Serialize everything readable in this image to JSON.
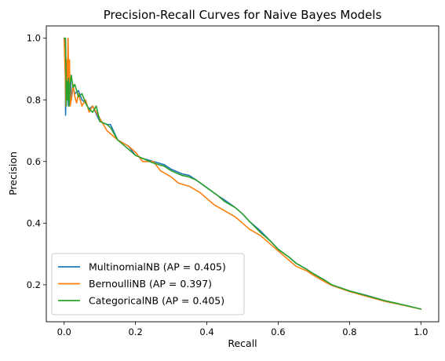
{
  "chart_data": {
    "type": "line",
    "title": "Precision-Recall Curves for Naive Bayes Models",
    "xlabel": "Recall",
    "ylabel": "Precision",
    "xlim": [
      -0.05,
      1.05
    ],
    "ylim": [
      0.08,
      1.04
    ],
    "xticks": [
      0.0,
      0.2,
      0.4,
      0.6,
      0.8,
      1.0
    ],
    "xtick_labels": [
      "0.0",
      "0.2",
      "0.4",
      "0.6",
      "0.8",
      "1.0"
    ],
    "yticks": [
      0.2,
      0.4,
      0.6,
      0.8,
      1.0
    ],
    "ytick_labels": [
      "0.2",
      "0.4",
      "0.6",
      "0.8",
      "1.0"
    ],
    "grid": false,
    "legend_position": "lower-left",
    "series": [
      {
        "name": "MultinomialNB (AP = 0.405)",
        "color": "#1f77b4",
        "points": [
          [
            0.0,
            1.0
          ],
          [
            0.003,
            1.0
          ],
          [
            0.004,
            0.75
          ],
          [
            0.006,
            0.86
          ],
          [
            0.008,
            0.8
          ],
          [
            0.01,
            0.83
          ],
          [
            0.012,
            0.78
          ],
          [
            0.015,
            0.82
          ],
          [
            0.018,
            0.87
          ],
          [
            0.02,
            0.8
          ],
          [
            0.025,
            0.84
          ],
          [
            0.03,
            0.82
          ],
          [
            0.04,
            0.83
          ],
          [
            0.05,
            0.8
          ],
          [
            0.06,
            0.79
          ],
          [
            0.07,
            0.77
          ],
          [
            0.08,
            0.78
          ],
          [
            0.1,
            0.73
          ],
          [
            0.12,
            0.72
          ],
          [
            0.13,
            0.72
          ],
          [
            0.15,
            0.67
          ],
          [
            0.18,
            0.65
          ],
          [
            0.2,
            0.62
          ],
          [
            0.22,
            0.61
          ],
          [
            0.25,
            0.6
          ],
          [
            0.28,
            0.59
          ],
          [
            0.3,
            0.575
          ],
          [
            0.33,
            0.56
          ],
          [
            0.35,
            0.555
          ],
          [
            0.37,
            0.54
          ],
          [
            0.4,
            0.515
          ],
          [
            0.43,
            0.49
          ],
          [
            0.45,
            0.475
          ],
          [
            0.48,
            0.45
          ],
          [
            0.5,
            0.43
          ],
          [
            0.52,
            0.405
          ],
          [
            0.55,
            0.375
          ],
          [
            0.58,
            0.34
          ],
          [
            0.6,
            0.315
          ],
          [
            0.63,
            0.29
          ],
          [
            0.65,
            0.27
          ],
          [
            0.68,
            0.25
          ],
          [
            0.7,
            0.235
          ],
          [
            0.73,
            0.215
          ],
          [
            0.75,
            0.2
          ],
          [
            0.8,
            0.18
          ],
          [
            0.85,
            0.165
          ],
          [
            0.9,
            0.148
          ],
          [
            0.95,
            0.135
          ],
          [
            1.0,
            0.121
          ]
        ]
      },
      {
        "name": "BernoulliNB (AP = 0.397)",
        "color": "#ff7f0e",
        "points": [
          [
            0.0,
            1.0
          ],
          [
            0.003,
            0.88
          ],
          [
            0.005,
            0.78
          ],
          [
            0.007,
            0.93
          ],
          [
            0.009,
            0.85
          ],
          [
            0.011,
            1.0
          ],
          [
            0.013,
            0.84
          ],
          [
            0.015,
            0.93
          ],
          [
            0.017,
            0.78
          ],
          [
            0.02,
            0.8
          ],
          [
            0.025,
            0.85
          ],
          [
            0.03,
            0.81
          ],
          [
            0.035,
            0.79
          ],
          [
            0.04,
            0.82
          ],
          [
            0.05,
            0.78
          ],
          [
            0.06,
            0.8
          ],
          [
            0.07,
            0.76
          ],
          [
            0.08,
            0.78
          ],
          [
            0.1,
            0.74
          ],
          [
            0.12,
            0.7
          ],
          [
            0.15,
            0.67
          ],
          [
            0.18,
            0.65
          ],
          [
            0.2,
            0.63
          ],
          [
            0.22,
            0.6
          ],
          [
            0.25,
            0.6
          ],
          [
            0.27,
            0.57
          ],
          [
            0.3,
            0.55
          ],
          [
            0.32,
            0.53
          ],
          [
            0.35,
            0.52
          ],
          [
            0.38,
            0.5
          ],
          [
            0.4,
            0.48
          ],
          [
            0.42,
            0.46
          ],
          [
            0.45,
            0.44
          ],
          [
            0.48,
            0.42
          ],
          [
            0.5,
            0.4
          ],
          [
            0.52,
            0.38
          ],
          [
            0.55,
            0.36
          ],
          [
            0.58,
            0.33
          ],
          [
            0.6,
            0.31
          ],
          [
            0.63,
            0.28
          ],
          [
            0.65,
            0.26
          ],
          [
            0.68,
            0.245
          ],
          [
            0.7,
            0.23
          ],
          [
            0.73,
            0.21
          ],
          [
            0.75,
            0.198
          ],
          [
            0.8,
            0.178
          ],
          [
            0.85,
            0.162
          ],
          [
            0.9,
            0.146
          ],
          [
            0.95,
            0.134
          ],
          [
            1.0,
            0.121
          ]
        ]
      },
      {
        "name": "CategoricalNB (AP = 0.405)",
        "color": "#2ca02c",
        "points": [
          [
            0.0,
            1.0
          ],
          [
            0.004,
            1.0
          ],
          [
            0.006,
            0.78
          ],
          [
            0.008,
            0.86
          ],
          [
            0.01,
            0.8
          ],
          [
            0.012,
            0.87
          ],
          [
            0.014,
            0.78
          ],
          [
            0.016,
            0.85
          ],
          [
            0.02,
            0.88
          ],
          [
            0.025,
            0.84
          ],
          [
            0.03,
            0.85
          ],
          [
            0.04,
            0.81
          ],
          [
            0.05,
            0.82
          ],
          [
            0.06,
            0.79
          ],
          [
            0.07,
            0.77
          ],
          [
            0.08,
            0.76
          ],
          [
            0.09,
            0.78
          ],
          [
            0.1,
            0.73
          ],
          [
            0.12,
            0.72
          ],
          [
            0.13,
            0.71
          ],
          [
            0.15,
            0.67
          ],
          [
            0.18,
            0.64
          ],
          [
            0.2,
            0.62
          ],
          [
            0.22,
            0.61
          ],
          [
            0.25,
            0.595
          ],
          [
            0.28,
            0.585
          ],
          [
            0.3,
            0.57
          ],
          [
            0.33,
            0.555
          ],
          [
            0.35,
            0.55
          ],
          [
            0.37,
            0.54
          ],
          [
            0.4,
            0.515
          ],
          [
            0.43,
            0.49
          ],
          [
            0.45,
            0.47
          ],
          [
            0.48,
            0.45
          ],
          [
            0.5,
            0.43
          ],
          [
            0.52,
            0.405
          ],
          [
            0.55,
            0.37
          ],
          [
            0.58,
            0.34
          ],
          [
            0.6,
            0.315
          ],
          [
            0.63,
            0.29
          ],
          [
            0.65,
            0.27
          ],
          [
            0.68,
            0.25
          ],
          [
            0.7,
            0.235
          ],
          [
            0.73,
            0.215
          ],
          [
            0.75,
            0.2
          ],
          [
            0.8,
            0.18
          ],
          [
            0.85,
            0.164
          ],
          [
            0.9,
            0.148
          ],
          [
            0.95,
            0.135
          ],
          [
            1.0,
            0.121
          ]
        ]
      }
    ]
  }
}
